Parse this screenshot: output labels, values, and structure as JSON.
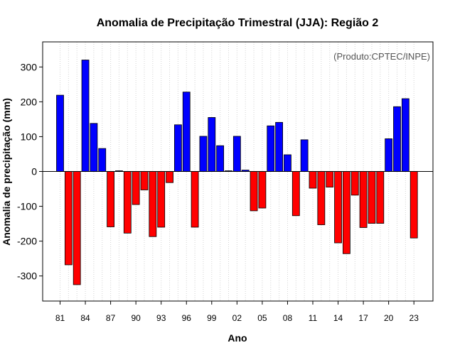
{
  "chart_data": {
    "type": "bar",
    "title": "Anomalia de Precipitação Trimestral (JJA): Região 2",
    "subtitle": "(Produto:CPTEC/INPE)",
    "xlabel": "Ano",
    "ylabel": "Anomalia de precipitação (mm)",
    "ylim": [
      -372,
      372
    ],
    "yticks": [
      -300,
      -200,
      -100,
      0,
      100,
      200,
      300
    ],
    "xtick_labels": [
      "81",
      "84",
      "87",
      "90",
      "93",
      "96",
      "99",
      "02",
      "05",
      "08",
      "11",
      "14",
      "17",
      "20",
      "23"
    ],
    "xtick_positions": [
      81,
      84,
      87,
      90,
      93,
      96,
      99,
      102,
      105,
      108,
      111,
      114,
      117,
      120,
      123
    ],
    "grid": "vertical dotted",
    "colors": {
      "positive": "#0000ff",
      "negative": "#ff0000",
      "bar_edge": "#000000"
    },
    "categories": [
      1981,
      1982,
      1983,
      1984,
      1985,
      1986,
      1987,
      1988,
      1989,
      1990,
      1991,
      1992,
      1993,
      1994,
      1995,
      1996,
      1997,
      1998,
      1999,
      2000,
      2001,
      2002,
      2003,
      2004,
      2005,
      2006,
      2007,
      2008,
      2009,
      2010,
      2011,
      2012,
      2013,
      2014,
      2015,
      2016,
      2017,
      2018,
      2019,
      2020,
      2021,
      2022,
      2023
    ],
    "values": [
      219,
      -268,
      -325,
      320,
      138,
      66,
      -159,
      2,
      -177,
      -95,
      -53,
      -187,
      -160,
      -32,
      134,
      228,
      -160,
      101,
      155,
      74,
      2,
      101,
      4,
      -113,
      -105,
      131,
      141,
      48,
      -127,
      91,
      -48,
      -153,
      -45,
      -205,
      -236,
      -68,
      -161,
      -149,
      -149,
      94,
      186,
      209,
      -191
    ]
  }
}
